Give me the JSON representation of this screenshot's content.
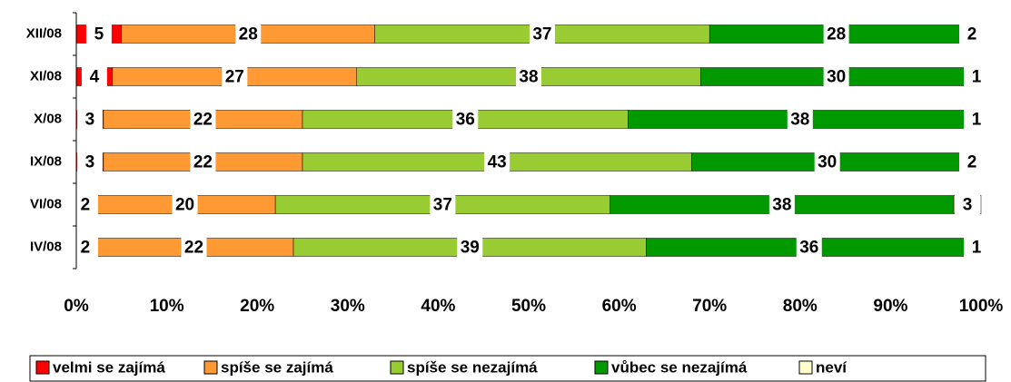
{
  "chart_data": {
    "type": "stacked-barh",
    "categories": [
      "XII/08",
      "XI/08",
      "X/08",
      "IX/08",
      "VI/08",
      "IV/08"
    ],
    "series": [
      {
        "name": "velmi se zajímá",
        "color": "#ff0000",
        "values": [
          5,
          4,
          3,
          3,
          2,
          2
        ]
      },
      {
        "name": "spíše se zajímá",
        "color": "#ff9933",
        "values": [
          28,
          27,
          22,
          22,
          20,
          22
        ]
      },
      {
        "name": "spíše se nezajímá",
        "color": "#99cc33",
        "values": [
          37,
          38,
          36,
          43,
          37,
          39
        ]
      },
      {
        "name": "vůbec se nezajímá",
        "color": "#009900",
        "values": [
          28,
          30,
          38,
          30,
          38,
          36
        ]
      },
      {
        "name": "neví",
        "color": "#ffffcc",
        "values": [
          2,
          1,
          1,
          2,
          3,
          1
        ]
      }
    ],
    "xlim": [
      0,
      100
    ],
    "xticks": [
      {
        "value": 0,
        "label": "0%"
      },
      {
        "value": 10,
        "label": "10%"
      },
      {
        "value": 20,
        "label": "20%"
      },
      {
        "value": 30,
        "label": "30%"
      },
      {
        "value": 40,
        "label": "40%"
      },
      {
        "value": 50,
        "label": "50%"
      },
      {
        "value": 60,
        "label": "60%"
      },
      {
        "value": 70,
        "label": "70%"
      },
      {
        "value": 80,
        "label": "80%"
      },
      {
        "value": 90,
        "label": "90%"
      },
      {
        "value": 100,
        "label": "100%"
      }
    ]
  }
}
